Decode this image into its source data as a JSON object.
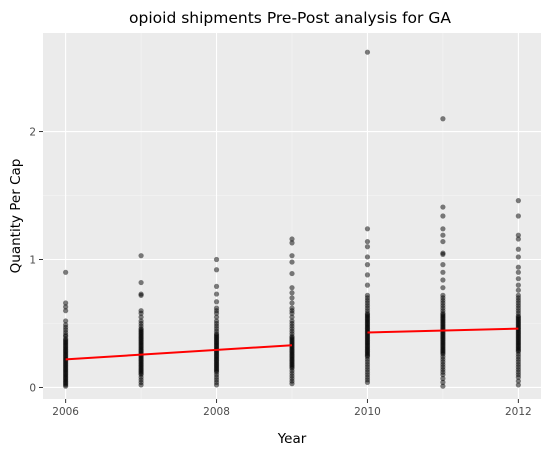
{
  "chart_data": {
    "type": "scatter",
    "title": "opioid shipments Pre-Post analysis for GA",
    "xlabel": "Year",
    "ylabel": "Quantity Per Cap",
    "xlim": [
      2005.7,
      2012.3
    ],
    "ylim": [
      -0.09,
      2.77
    ],
    "x_ticks": [
      2006,
      2008,
      2010,
      2012
    ],
    "x_tick_labels": [
      "2006",
      "2008",
      "2010",
      "2012"
    ],
    "y_ticks": [
      0,
      1,
      2
    ],
    "y_tick_labels": [
      "0",
      "1",
      "2"
    ],
    "grid": true,
    "panel_background": "#ebebeb",
    "point_color": "#000000",
    "point_alpha": 0.5,
    "fit_color": "#ff0000",
    "points_by_year": [
      {
        "year": 2006,
        "values": [
          0.01,
          0.02,
          0.03,
          0.04,
          0.05,
          0.06,
          0.07,
          0.08,
          0.09,
          0.1,
          0.11,
          0.12,
          0.13,
          0.14,
          0.15,
          0.16,
          0.17,
          0.18,
          0.19,
          0.2,
          0.21,
          0.22,
          0.23,
          0.24,
          0.25,
          0.26,
          0.27,
          0.28,
          0.29,
          0.3,
          0.31,
          0.32,
          0.33,
          0.34,
          0.35,
          0.36,
          0.37,
          0.38,
          0.4,
          0.41,
          0.43,
          0.45,
          0.47,
          0.49,
          0.52,
          0.6,
          0.63,
          0.66,
          0.9
        ]
      },
      {
        "year": 2007,
        "values": [
          0.02,
          0.04,
          0.06,
          0.08,
          0.1,
          0.11,
          0.12,
          0.13,
          0.14,
          0.15,
          0.16,
          0.17,
          0.18,
          0.19,
          0.2,
          0.21,
          0.22,
          0.23,
          0.24,
          0.25,
          0.26,
          0.27,
          0.28,
          0.29,
          0.3,
          0.31,
          0.32,
          0.33,
          0.34,
          0.35,
          0.36,
          0.37,
          0.38,
          0.39,
          0.4,
          0.41,
          0.42,
          0.43,
          0.44,
          0.45,
          0.46,
          0.48,
          0.5,
          0.52,
          0.55,
          0.58,
          0.6,
          0.72,
          0.73,
          0.82,
          1.03
        ]
      },
      {
        "year": 2008,
        "values": [
          0.02,
          0.04,
          0.06,
          0.08,
          0.1,
          0.12,
          0.13,
          0.14,
          0.15,
          0.16,
          0.17,
          0.18,
          0.19,
          0.2,
          0.21,
          0.22,
          0.23,
          0.24,
          0.25,
          0.26,
          0.27,
          0.28,
          0.29,
          0.3,
          0.31,
          0.32,
          0.33,
          0.34,
          0.35,
          0.36,
          0.37,
          0.38,
          0.39,
          0.4,
          0.41,
          0.42,
          0.44,
          0.46,
          0.48,
          0.5,
          0.52,
          0.55,
          0.58,
          0.6,
          0.62,
          0.67,
          0.73,
          0.79,
          0.92,
          1.0
        ]
      },
      {
        "year": 2009,
        "values": [
          0.03,
          0.05,
          0.07,
          0.09,
          0.11,
          0.13,
          0.15,
          0.16,
          0.17,
          0.18,
          0.19,
          0.2,
          0.21,
          0.22,
          0.23,
          0.24,
          0.25,
          0.26,
          0.27,
          0.28,
          0.29,
          0.3,
          0.31,
          0.32,
          0.33,
          0.34,
          0.35,
          0.36,
          0.37,
          0.38,
          0.39,
          0.4,
          0.42,
          0.44,
          0.46,
          0.48,
          0.5,
          0.52,
          0.55,
          0.58,
          0.6,
          0.62,
          0.66,
          0.7,
          0.74,
          0.78,
          0.89,
          0.98,
          1.03,
          1.13,
          1.16
        ]
      },
      {
        "year": 2010,
        "values": [
          0.04,
          0.06,
          0.08,
          0.1,
          0.12,
          0.14,
          0.16,
          0.18,
          0.2,
          0.22,
          0.24,
          0.25,
          0.26,
          0.27,
          0.28,
          0.29,
          0.3,
          0.31,
          0.32,
          0.33,
          0.34,
          0.35,
          0.36,
          0.37,
          0.38,
          0.39,
          0.4,
          0.41,
          0.42,
          0.43,
          0.44,
          0.45,
          0.46,
          0.47,
          0.48,
          0.49,
          0.5,
          0.51,
          0.52,
          0.53,
          0.54,
          0.55,
          0.56,
          0.57,
          0.58,
          0.6,
          0.62,
          0.64,
          0.66,
          0.68,
          0.7,
          0.72,
          0.8,
          0.88,
          0.96,
          1.02,
          1.1,
          1.14,
          1.24,
          2.62
        ]
      },
      {
        "year": 2011,
        "values": [
          0.01,
          0.04,
          0.07,
          0.1,
          0.12,
          0.14,
          0.16,
          0.18,
          0.2,
          0.22,
          0.24,
          0.26,
          0.27,
          0.28,
          0.29,
          0.3,
          0.31,
          0.32,
          0.33,
          0.34,
          0.35,
          0.36,
          0.37,
          0.38,
          0.39,
          0.4,
          0.41,
          0.42,
          0.43,
          0.44,
          0.45,
          0.46,
          0.47,
          0.48,
          0.49,
          0.5,
          0.51,
          0.52,
          0.53,
          0.54,
          0.55,
          0.56,
          0.57,
          0.58,
          0.6,
          0.62,
          0.64,
          0.66,
          0.68,
          0.7,
          0.72,
          0.78,
          0.84,
          0.9,
          0.96,
          1.04,
          1.05,
          1.14,
          1.19,
          1.24,
          1.34,
          1.41,
          2.1
        ]
      },
      {
        "year": 2012,
        "values": [
          0.02,
          0.05,
          0.08,
          0.1,
          0.12,
          0.14,
          0.16,
          0.18,
          0.2,
          0.22,
          0.24,
          0.26,
          0.28,
          0.29,
          0.3,
          0.31,
          0.32,
          0.33,
          0.34,
          0.35,
          0.36,
          0.37,
          0.38,
          0.39,
          0.4,
          0.41,
          0.42,
          0.43,
          0.44,
          0.45,
          0.46,
          0.47,
          0.48,
          0.49,
          0.5,
          0.51,
          0.52,
          0.53,
          0.54,
          0.55,
          0.56,
          0.58,
          0.6,
          0.62,
          0.64,
          0.66,
          0.68,
          0.7,
          0.72,
          0.76,
          0.8,
          0.85,
          0.9,
          0.94,
          1.02,
          1.08,
          1.16,
          1.19,
          1.34,
          1.46
        ]
      }
    ],
    "fit_lines": [
      {
        "x": [
          2006,
          2009
        ],
        "y": [
          0.22,
          0.33
        ]
      },
      {
        "x": [
          2010,
          2012
        ],
        "y": [
          0.43,
          0.46
        ]
      }
    ]
  }
}
